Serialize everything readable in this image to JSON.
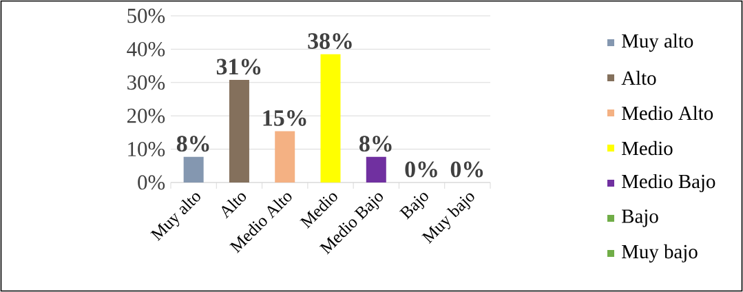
{
  "chart_data": {
    "type": "bar",
    "categories": [
      "Muy alto",
      "Alto",
      "Medio Alto",
      "Medio",
      "Medio Bajo",
      "Bajo",
      "Muy bajo"
    ],
    "series": [
      {
        "name": "Muy alto",
        "color": "#8497b0",
        "values": [
          7.7,
          null,
          null,
          null,
          null,
          null,
          null
        ],
        "value_labels": [
          "8%",
          null,
          null,
          null,
          null,
          null,
          null
        ]
      },
      {
        "name": "Alto",
        "color": "#84705c",
        "values": [
          null,
          30.8,
          null,
          null,
          null,
          null,
          null
        ],
        "value_labels": [
          null,
          "31%",
          null,
          null,
          null,
          null,
          null
        ]
      },
      {
        "name": "Medio Alto",
        "color": "#f4b183",
        "values": [
          null,
          null,
          15.4,
          null,
          null,
          null,
          null
        ],
        "value_labels": [
          null,
          null,
          "15%",
          null,
          null,
          null,
          null
        ]
      },
      {
        "name": "Medio",
        "color": "#ffff00",
        "values": [
          null,
          null,
          null,
          38.5,
          null,
          null,
          null
        ],
        "value_labels": [
          null,
          null,
          null,
          "38%",
          null,
          null,
          null
        ]
      },
      {
        "name": "Medio Bajo",
        "color": "#7030a0",
        "values": [
          null,
          null,
          null,
          null,
          7.7,
          null,
          null
        ],
        "value_labels": [
          null,
          null,
          null,
          null,
          "8%",
          null,
          null
        ]
      },
      {
        "name": "Bajo",
        "color": "#70ad47",
        "values": [
          null,
          null,
          null,
          null,
          null,
          0,
          null
        ],
        "value_labels": [
          null,
          null,
          null,
          null,
          null,
          "0%",
          null
        ]
      },
      {
        "name": "Muy bajo",
        "color": "#70ad47",
        "values": [
          null,
          null,
          null,
          null,
          null,
          null,
          0
        ],
        "value_labels": [
          null,
          null,
          null,
          null,
          null,
          null,
          "0%"
        ]
      }
    ],
    "ylim": [
      0,
      50
    ],
    "yticks": [
      {
        "value": 0,
        "label": "0%"
      },
      {
        "value": 10,
        "label": "10%"
      },
      {
        "value": 20,
        "label": "20%"
      },
      {
        "value": 30,
        "label": "30%"
      },
      {
        "value": 40,
        "label": "40%"
      },
      {
        "value": 50,
        "label": "50%"
      }
    ],
    "grid": "y",
    "legend": "right"
  }
}
